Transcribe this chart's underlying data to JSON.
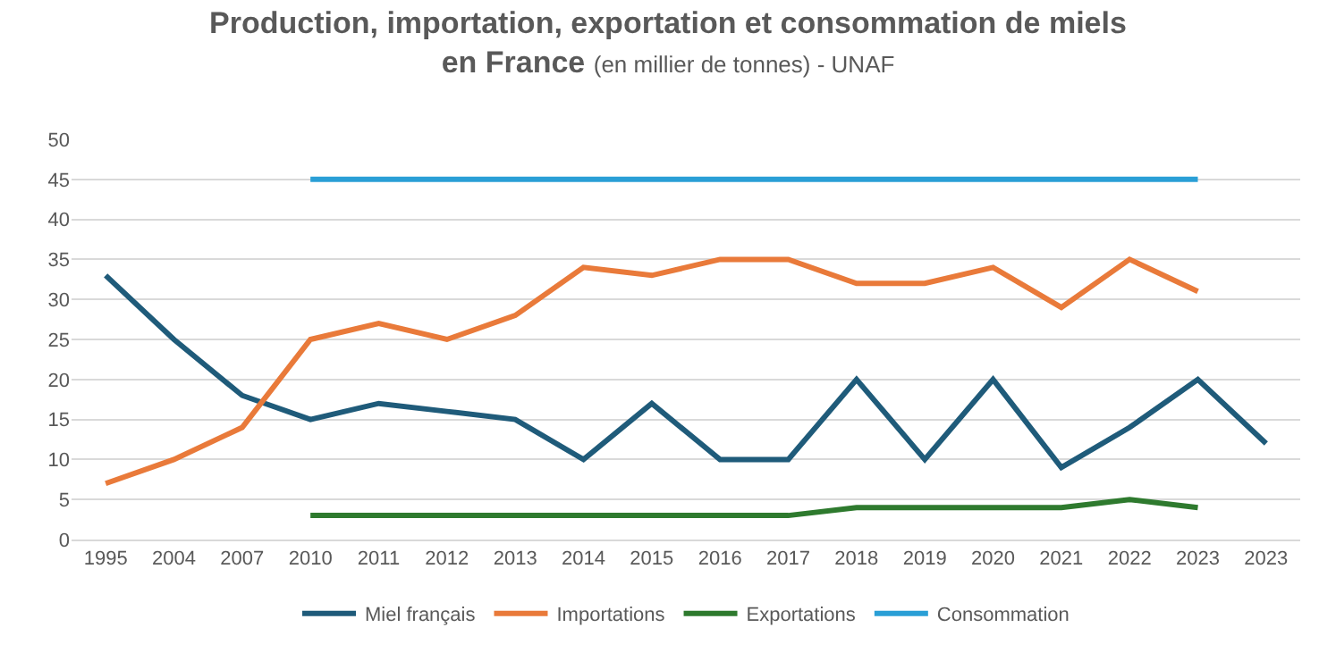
{
  "chart_data": {
    "type": "line",
    "title": "Production, importation, exportation et consommation de miels\nen France",
    "subtitle": "(en millier de tonnes) - UNAF",
    "categories": [
      "1995",
      "2004",
      "2007",
      "2010",
      "2011",
      "2012",
      "2013",
      "2014",
      "2015",
      "2016",
      "2017",
      "2018",
      "2019",
      "2020",
      "2021",
      "2022",
      "2023",
      "2023"
    ],
    "series": [
      {
        "name": "Miel français",
        "color": "#1f5b7a",
        "values": [
          33,
          25,
          18,
          15,
          17,
          16,
          15,
          10,
          17,
          10,
          10,
          20,
          10,
          20,
          9,
          14,
          20,
          12
        ]
      },
      {
        "name": "Importations",
        "color": "#e97a3a",
        "values": [
          7,
          10,
          14,
          25,
          27,
          25,
          28,
          34,
          33,
          35,
          35,
          32,
          32,
          34,
          29,
          35,
          31,
          null
        ]
      },
      {
        "name": "Exportations",
        "color": "#2e7a2e",
        "values": [
          null,
          null,
          null,
          3,
          3,
          3,
          3,
          3,
          3,
          3,
          3,
          4,
          4,
          4,
          4,
          5,
          4,
          null
        ]
      },
      {
        "name": "Consommation",
        "color": "#2a9fd6",
        "values": [
          null,
          null,
          null,
          45,
          45,
          45,
          45,
          45,
          45,
          45,
          45,
          45,
          45,
          45,
          45,
          45,
          45,
          null
        ]
      }
    ],
    "ylim": [
      0,
      50
    ],
    "yticks": [
      0,
      5,
      10,
      15,
      20,
      25,
      30,
      35,
      40,
      45,
      50
    ],
    "grid": "y",
    "legend": "bottom",
    "marker": "none",
    "line_style": "solid"
  }
}
